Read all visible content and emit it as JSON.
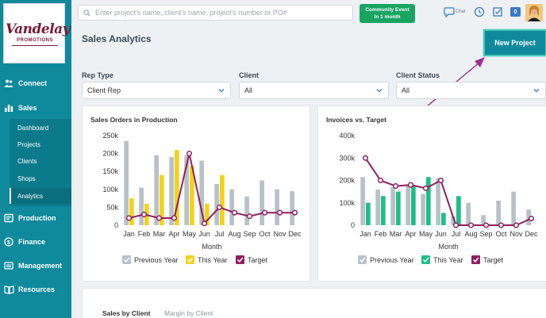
{
  "brand": {
    "logo_main": "Vandelay",
    "logo_sub": "PROMOTIONS"
  },
  "sidebar": {
    "groups": [
      {
        "label": "Connect",
        "icon": "people-icon"
      },
      {
        "label": "Sales",
        "icon": "bar-chart-icon"
      },
      {
        "label": "Production",
        "icon": "production-icon"
      },
      {
        "label": "Finance",
        "icon": "dollar-icon"
      },
      {
        "label": "Management",
        "icon": "management-icon"
      },
      {
        "label": "Resources",
        "icon": "book-icon"
      }
    ],
    "sales_items": [
      "Dashboard",
      "Projects",
      "Clients",
      "Shops",
      "Analytics"
    ],
    "active_item": "Analytics"
  },
  "header": {
    "search_placeholder": "Enter project's name, client's name, project's number or PO#",
    "community_title": "Community Event",
    "community_sub": "In 1 month",
    "chat_label": "Chat",
    "notification_count": "0"
  },
  "page": {
    "title": "Sales Analytics",
    "new_project_label": "New Project"
  },
  "filters": [
    {
      "label": "Rep Type",
      "value": "Client Rep"
    },
    {
      "label": "Client",
      "value": "All"
    },
    {
      "label": "Client Status",
      "value": "All"
    }
  ],
  "colors": {
    "teal": "#0f8a9d",
    "prev_year": "#b9c1c8",
    "sales_this_year": "#f2d21a",
    "invoice_this_year": "#1dbf84",
    "target": "#8e1f5e"
  },
  "chart_data": [
    {
      "type": "bar",
      "title": "Sales Orders in Production",
      "xlabel": "Month",
      "ylabel": "",
      "categories": [
        "Jan",
        "Feb",
        "Mar",
        "Apr",
        "May",
        "Jun",
        "Jul",
        "Aug",
        "Sep",
        "Oct",
        "Nov",
        "Dec"
      ],
      "yticks": [
        "250k",
        "200k",
        "150k",
        "100k",
        "50k",
        "0"
      ],
      "ylim": [
        0,
        250000
      ],
      "series": [
        {
          "name": "Previous Year",
          "type": "bar",
          "values": [
            235000,
            105000,
            195000,
            190000,
            195000,
            180000,
            115000,
            100000,
            80000,
            125000,
            100000,
            95000
          ]
        },
        {
          "name": "This Year",
          "type": "bar",
          "values": [
            75000,
            60000,
            140000,
            210000,
            165000,
            60000,
            140000,
            0,
            0,
            0,
            0,
            0
          ]
        },
        {
          "name": "Target",
          "type": "line",
          "values": [
            20000,
            30000,
            20000,
            20000,
            200000,
            5000,
            50000,
            35000,
            25000,
            35000,
            35000,
            35000
          ]
        }
      ],
      "legend": "bottom"
    },
    {
      "type": "bar",
      "title": "Invoices vs. Target",
      "xlabel": "Month",
      "ylabel": "",
      "categories": [
        "Jan",
        "Feb",
        "Mar",
        "Apr",
        "May",
        "Jun",
        "Jul",
        "Aug",
        "Sep",
        "Oct",
        "Nov",
        "Dec"
      ],
      "yticks": [
        "400k",
        "300k",
        "200k",
        "100k",
        "0"
      ],
      "ylim": [
        0,
        400000
      ],
      "series": [
        {
          "name": "Previous Year",
          "type": "bar",
          "values": [
            215000,
            160000,
            170000,
            180000,
            140000,
            210000,
            40000,
            100000,
            45000,
            110000,
            150000,
            70000
          ]
        },
        {
          "name": "This Year",
          "type": "bar",
          "values": [
            100000,
            130000,
            150000,
            180000,
            215000,
            55000,
            130000,
            0,
            0,
            0,
            0,
            0
          ]
        },
        {
          "name": "Target",
          "type": "line",
          "values": [
            300000,
            200000,
            175000,
            180000,
            165000,
            200000,
            0,
            0,
            0,
            0,
            0,
            30000
          ]
        }
      ],
      "legend": "bottom"
    }
  ],
  "legend_labels": [
    "Previous Year",
    "This Year",
    "Target"
  ],
  "bottom_tabs": [
    "Sales by Client",
    "Margin by Client"
  ]
}
